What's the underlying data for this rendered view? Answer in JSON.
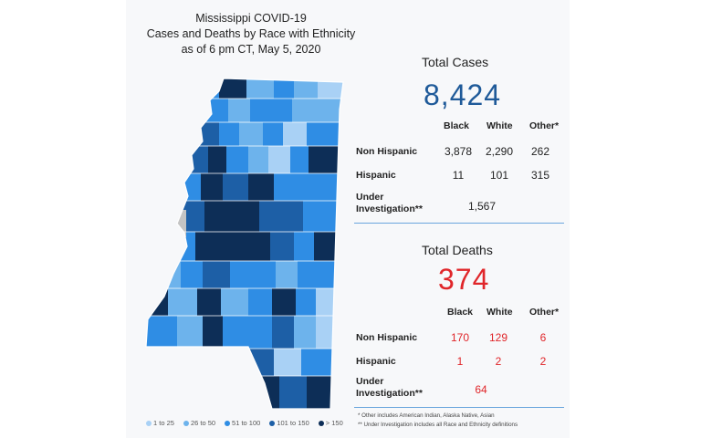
{
  "title": {
    "line1": "Mississippi COVID-19",
    "line2": "Cases and Deaths by Race with Ethnicity",
    "line3": "as of 6 pm CT, May 5, 2020"
  },
  "cases": {
    "heading": "Total Cases",
    "total": "8,424",
    "columns": [
      "Black",
      "White",
      "Other*"
    ],
    "rows": [
      {
        "label": "Non Hispanic",
        "values": [
          "3,878",
          "2,290",
          "262"
        ]
      },
      {
        "label": "Hispanic",
        "values": [
          "11",
          "101",
          "315"
        ]
      }
    ],
    "under_label_1": "Under",
    "under_label_2": "Investigation**",
    "under_value": "1,567"
  },
  "deaths": {
    "heading": "Total Deaths",
    "total": "374",
    "columns": [
      "Black",
      "White",
      "Other*"
    ],
    "rows": [
      {
        "label": "Non Hispanic",
        "values": [
          "170",
          "129",
          "6"
        ]
      },
      {
        "label": "Hispanic",
        "values": [
          "1",
          "2",
          "2"
        ]
      }
    ],
    "under_label_1": "Under",
    "under_label_2": "Investigation**",
    "under_value": "64"
  },
  "footnotes": {
    "note1": "* Other includes American Indian, Alaska Native, Asian",
    "note2": "** Under Investigation includes all Race and Ethnicity definitions"
  },
  "legend": [
    {
      "label": "1 to 25",
      "color": "#a9d1f5"
    },
    {
      "label": "26 to 50",
      "color": "#6db3ec"
    },
    {
      "label": "51 to 100",
      "color": "#2f8de4"
    },
    {
      "label": "101 to 150",
      "color": "#1d5fa6"
    },
    {
      "label": "> 150",
      "color": "#0d2e57"
    }
  ],
  "colors": {
    "cases_total": "#1f5a99",
    "deaths": "#e0262a",
    "no_data": "#c4c4c4"
  }
}
